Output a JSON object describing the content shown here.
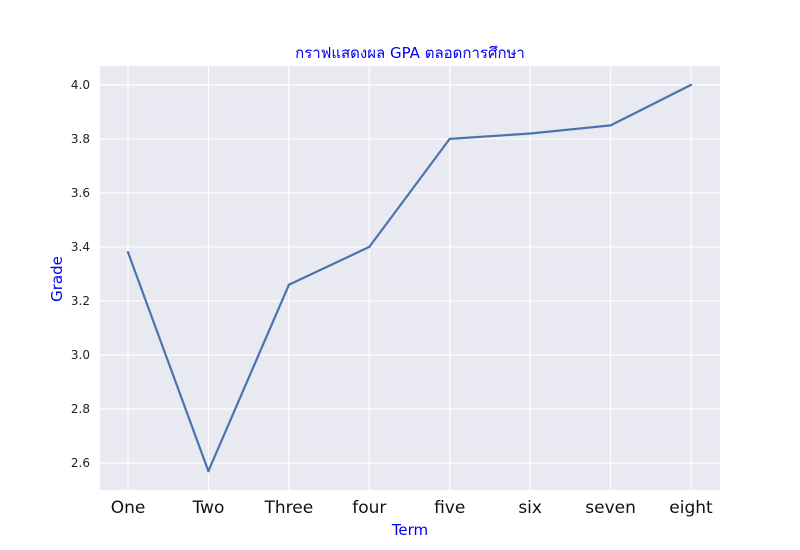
{
  "chart_data": {
    "type": "line",
    "title": "กราฟแสดงผล GPA ตลอดการศึกษา",
    "xlabel": "Term",
    "ylabel": "Grade",
    "categories": [
      "One",
      "Two",
      "Three",
      "four",
      "five",
      "six",
      "seven",
      "eight"
    ],
    "series": [
      {
        "values": [
          3.38,
          2.57,
          3.26,
          3.4,
          3.8,
          3.82,
          3.85,
          4.0
        ]
      }
    ],
    "ylim": [
      2.5,
      4.07
    ],
    "yticks": [
      "2.6",
      "2.8",
      "3.0",
      "3.2",
      "3.4",
      "3.6",
      "3.8",
      "4.0"
    ],
    "grid": true,
    "colors": {
      "plot_background": "#e9e9f1",
      "grid": "#ffffff",
      "line": "#4c72b0",
      "label_text": "#0000ee"
    }
  }
}
